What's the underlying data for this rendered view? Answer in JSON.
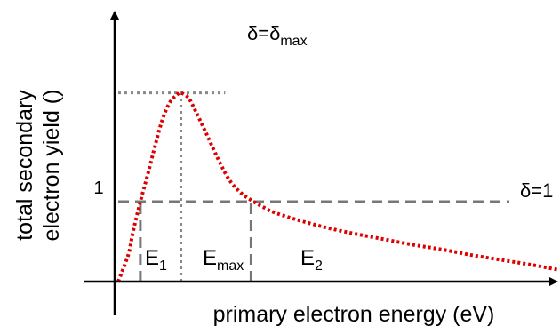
{
  "chart_data": {
    "type": "line",
    "title": "",
    "xlabel": "primary electron energy (eV)",
    "ylabel_line1": "total secondary",
    "ylabel_line2": "electron yield ()",
    "xlim": [
      0,
      6
    ],
    "ylim": [
      0,
      2.5
    ],
    "series": [
      {
        "name": "",
        "color": "#dd0000",
        "style": "dotted",
        "points": [
          [
            0.0,
            0.0
          ],
          [
            0.05,
            0.12
          ],
          [
            0.1,
            0.24
          ],
          [
            0.15,
            0.38
          ],
          [
            0.2,
            0.62
          ],
          [
            0.3,
            1.0
          ],
          [
            0.4,
            1.34
          ],
          [
            0.5,
            1.7
          ],
          [
            0.6,
            2.03
          ],
          [
            0.7,
            2.24
          ],
          [
            0.8,
            2.34
          ],
          [
            0.85,
            2.36
          ],
          [
            0.95,
            2.3
          ],
          [
            1.05,
            2.13
          ],
          [
            1.2,
            1.84
          ],
          [
            1.35,
            1.54
          ],
          [
            1.5,
            1.28
          ],
          [
            1.65,
            1.12
          ],
          [
            1.8,
            1.02
          ],
          [
            1.95,
            0.94
          ],
          [
            2.1,
            0.87
          ],
          [
            2.4,
            0.78
          ],
          [
            2.8,
            0.68
          ],
          [
            3.2,
            0.6
          ],
          [
            3.6,
            0.53
          ],
          [
            4.0,
            0.46
          ],
          [
            4.4,
            0.4
          ],
          [
            4.8,
            0.33
          ],
          [
            5.2,
            0.27
          ],
          [
            5.6,
            0.21
          ],
          [
            5.95,
            0.15
          ]
        ]
      }
    ],
    "reference_lines": [
      {
        "id": "delta-one",
        "y": 1,
        "x_from": 0,
        "x_to": 5.3,
        "color": "#777777",
        "style": "dashed"
      },
      {
        "id": "delta-max",
        "y": 2.36,
        "x_from": 0,
        "x_to": 1.45,
        "color": "#888888",
        "style": "dotted"
      },
      {
        "id": "e1-drop",
        "x": 0.3,
        "y_from": 0,
        "y_to": 1,
        "color": "#777777",
        "style": "dashed"
      },
      {
        "id": "emax-drop",
        "x": 0.85,
        "y_from": 0,
        "y_to": 2.36,
        "color": "#888888",
        "style": "dotted"
      },
      {
        "id": "e2-drop",
        "x": 1.8,
        "y_from": 0,
        "y_to": 1,
        "color": "#777777",
        "style": "dashed"
      }
    ],
    "y_tick_labels": [
      {
        "value": 1,
        "text": "1"
      }
    ],
    "annotations": {
      "delta_max_base": "δ=δ",
      "delta_max_sub": "max",
      "delta_one": "δ=1",
      "e1_base": "E",
      "e1_sub": "1",
      "emax_base": "E",
      "emax_sub": "max",
      "e2_base": "E",
      "e2_sub": "2"
    },
    "grid": false,
    "legend": "none"
  }
}
